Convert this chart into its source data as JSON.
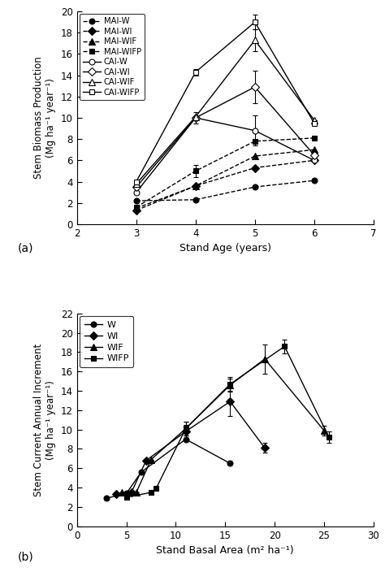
{
  "panel_a": {
    "xlabel": "Stand Age (years)",
    "ylabel": "Stem Biomass Production\n(Mg ha⁻¹ year⁻¹)",
    "xlim": [
      2,
      7
    ],
    "ylim": [
      0,
      20
    ],
    "xticks": [
      2,
      3,
      4,
      5,
      6,
      7
    ],
    "yticks": [
      0,
      2,
      4,
      6,
      8,
      10,
      12,
      14,
      16,
      18,
      20
    ],
    "series_order": [
      "MAI-W",
      "MAI-WI",
      "MAI-WIF",
      "MAI-WIFP",
      "CAI-W",
      "CAI-WI",
      "CAI-WIF",
      "CAI-WIFP"
    ],
    "series": {
      "MAI-W": {
        "x": [
          3,
          4,
          5,
          6
        ],
        "y": [
          2.2,
          2.3,
          3.5,
          4.1
        ],
        "yerr": [
          0.0,
          0.0,
          0.0,
          0.0
        ],
        "style": "dashed",
        "marker": "o",
        "filled": true
      },
      "MAI-WI": {
        "x": [
          3,
          4,
          5,
          6
        ],
        "y": [
          1.3,
          3.6,
          5.3,
          6.0
        ],
        "yerr": [
          0.0,
          0.0,
          0.0,
          0.0
        ],
        "style": "dashed",
        "marker": "D",
        "filled": true
      },
      "MAI-WIF": {
        "x": [
          3,
          4,
          5,
          6
        ],
        "y": [
          1.5,
          3.6,
          6.4,
          7.0
        ],
        "yerr": [
          0.0,
          0.0,
          0.0,
          0.0
        ],
        "style": "dashed",
        "marker": "^",
        "filled": true
      },
      "MAI-WIFP": {
        "x": [
          3,
          4,
          5,
          6
        ],
        "y": [
          1.6,
          5.0,
          7.8,
          8.1
        ],
        "yerr": [
          0.0,
          0.6,
          0.0,
          0.0
        ],
        "style": "dashed",
        "marker": "s",
        "filled": true
      },
      "CAI-W": {
        "x": [
          3,
          4,
          5,
          6
        ],
        "y": [
          3.0,
          10.0,
          8.8,
          6.0
        ],
        "yerr": [
          0.0,
          0.5,
          1.4,
          0.0
        ],
        "style": "solid",
        "marker": "o",
        "filled": false
      },
      "CAI-WI": {
        "x": [
          3,
          4,
          5,
          6
        ],
        "y": [
          3.5,
          10.0,
          12.9,
          6.5
        ],
        "yerr": [
          0.0,
          0.0,
          1.5,
          0.0
        ],
        "style": "solid",
        "marker": "D",
        "filled": false
      },
      "CAI-WIF": {
        "x": [
          3,
          4,
          5,
          6
        ],
        "y": [
          3.8,
          10.1,
          17.3,
          9.8
        ],
        "yerr": [
          0.0,
          0.0,
          1.0,
          0.0
        ],
        "style": "solid",
        "marker": "^",
        "filled": false
      },
      "CAI-WIFP": {
        "x": [
          3,
          4,
          5,
          6
        ],
        "y": [
          4.0,
          14.3,
          19.0,
          9.5
        ],
        "yerr": [
          0.0,
          0.3,
          0.7,
          0.0
        ],
        "style": "solid",
        "marker": "s",
        "filled": false
      }
    }
  },
  "panel_b": {
    "xlabel": "Stand Basal Area (m² ha⁻¹)",
    "ylabel": "Stem Current Annual Increment\n(Mg ha⁻¹ year⁻¹)",
    "xlim": [
      0,
      30
    ],
    "ylim": [
      0,
      22
    ],
    "xticks": [
      0,
      5,
      10,
      15,
      20,
      25,
      30
    ],
    "yticks": [
      0,
      2,
      4,
      6,
      8,
      10,
      12,
      14,
      16,
      18,
      20,
      22
    ],
    "series_order": [
      "W",
      "WI",
      "WIF",
      "WIFP"
    ],
    "series": {
      "W": {
        "x": [
          3.0,
          5.0,
          6.5,
          11.0,
          15.5
        ],
        "y": [
          2.9,
          3.4,
          5.6,
          9.0,
          6.5
        ],
        "yerr": [
          0.0,
          0.0,
          0.0,
          0.0,
          0.0
        ],
        "marker": "o",
        "filled": true
      },
      "WI": {
        "x": [
          4.0,
          5.5,
          7.0,
          11.0,
          15.5,
          19.0
        ],
        "y": [
          3.3,
          3.5,
          6.8,
          9.8,
          12.9,
          8.1
        ],
        "yerr": [
          0.0,
          0.0,
          0.0,
          0.7,
          1.5,
          0.5
        ],
        "marker": "D",
        "filled": true
      },
      "WIF": {
        "x": [
          4.5,
          6.0,
          7.5,
          11.0,
          15.5,
          19.0,
          25.0
        ],
        "y": [
          3.5,
          3.5,
          6.9,
          10.1,
          14.6,
          17.3,
          9.9
        ],
        "yerr": [
          0.0,
          0.0,
          0.0,
          0.7,
          0.7,
          1.5,
          0.5
        ],
        "marker": "^",
        "filled": true
      },
      "WIFP": {
        "x": [
          5.0,
          7.5,
          8.0,
          11.0,
          15.5,
          21.0,
          25.5
        ],
        "y": [
          3.0,
          3.5,
          3.9,
          10.1,
          14.7,
          18.6,
          9.2
        ],
        "yerr": [
          0.0,
          0.0,
          0.0,
          0.7,
          0.7,
          0.7,
          0.6
        ],
        "marker": "s",
        "filled": true
      }
    }
  }
}
